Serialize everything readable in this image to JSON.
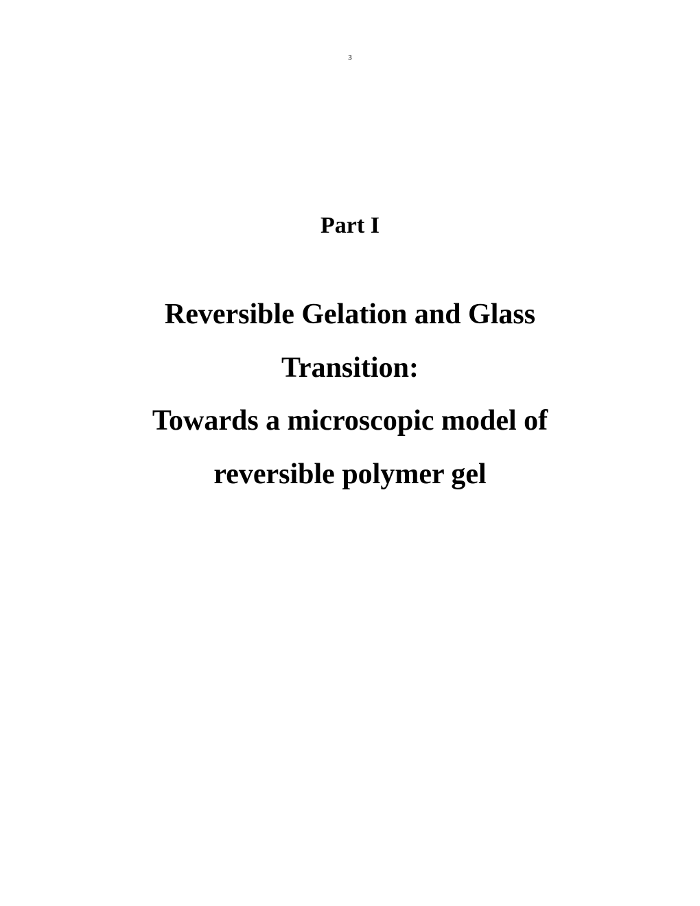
{
  "page": {
    "number": "3",
    "part_label": "Part I",
    "title_line_1": "Reversible Gelation and Glass",
    "title_line_2": "Transition:",
    "title_line_3": "Towards a microscopic model of",
    "title_line_4": "reversible polymer gel",
    "background_color": "#ffffff",
    "text_color": "#000000",
    "page_number_fontsize": 11,
    "part_label_fontsize": 34,
    "title_fontsize": 42
  }
}
